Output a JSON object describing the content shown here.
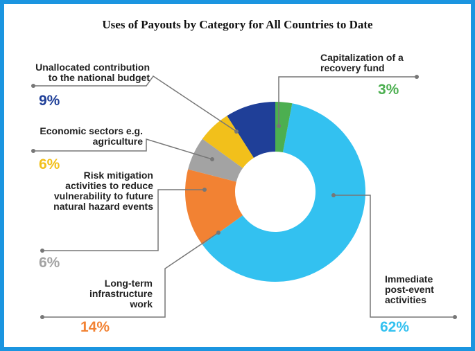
{
  "chart_data": {
    "type": "pie",
    "title": "Uses of Payouts by Category for All Countries to Date",
    "categories": [
      "Capitalization of a recovery fund",
      "Immediate post-event activities",
      "Long-term infrastructure work",
      "Risk mitigation activities to reduce vulnerability to future natural hazard events",
      "Economic sectors e.g. agriculture",
      "Unallocated contribution to the national budget"
    ],
    "values": [
      3,
      62,
      14,
      6,
      6,
      9
    ],
    "value_labels": [
      "3%",
      "62%",
      "14%",
      "6%",
      "6%",
      "9%"
    ],
    "colors": [
      "#4caf50",
      "#33c1f0",
      "#f28233",
      "#a3a3a3",
      "#f2c01b",
      "#1f3f98"
    ]
  }
}
